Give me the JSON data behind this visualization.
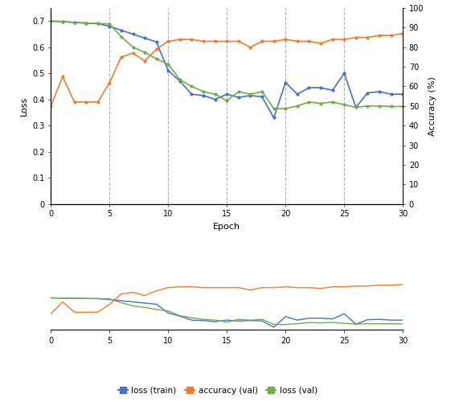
{
  "epochs": [
    0,
    1,
    2,
    3,
    4,
    5,
    6,
    7,
    8,
    9,
    10,
    11,
    12,
    13,
    14,
    15,
    16,
    17,
    18,
    19,
    20,
    21,
    22,
    23,
    24,
    25,
    26,
    27,
    28,
    29,
    30
  ],
  "loss_train": [
    0.7,
    0.698,
    0.695,
    0.692,
    0.69,
    0.68,
    0.665,
    0.65,
    0.635,
    0.62,
    0.51,
    0.47,
    0.42,
    0.415,
    0.4,
    0.42,
    0.408,
    0.415,
    0.41,
    0.33,
    0.465,
    0.42,
    0.445,
    0.445,
    0.435,
    0.5,
    0.37,
    0.425,
    0.43,
    0.42,
    0.42
  ],
  "loss_val": [
    0.7,
    0.698,
    0.695,
    0.693,
    0.691,
    0.689,
    0.64,
    0.6,
    0.58,
    0.555,
    0.535,
    0.475,
    0.45,
    0.43,
    0.42,
    0.395,
    0.43,
    0.42,
    0.43,
    0.365,
    0.365,
    0.375,
    0.39,
    0.385,
    0.39,
    0.38,
    0.37,
    0.375,
    0.375,
    0.373,
    0.373
  ],
  "acc_val": [
    50,
    65,
    52,
    52,
    52,
    62,
    75,
    77,
    73,
    79,
    83,
    84,
    84,
    83,
    83,
    83,
    83,
    80,
    83,
    83,
    84,
    83,
    83,
    82,
    84,
    84,
    85,
    85,
    86,
    86,
    87
  ],
  "color_train": "#4472C4",
  "color_val_loss": "#70AD47",
  "color_val_acc": "#ED7D31",
  "vline_positions": [
    5,
    10,
    15,
    20,
    25
  ],
  "xlabel": "Epoch",
  "ylabel_left": "Loss",
  "ylabel_right": "Accuracy (%)",
  "legend_labels": [
    "loss (train)",
    "accuracy (val)",
    "loss (val)"
  ],
  "legend_colors": [
    "#4472C4",
    "#ED7D31",
    "#70AD47"
  ],
  "mini_acc_val": [
    50,
    65,
    52,
    52,
    52,
    62,
    75,
    77,
    73,
    79,
    83,
    84,
    84,
    83,
    83,
    83,
    83,
    80,
    83,
    83,
    84,
    83,
    83,
    82,
    84,
    84,
    85,
    85,
    86,
    86,
    87
  ],
  "mini_loss_train": [
    0.7,
    0.698,
    0.695,
    0.692,
    0.69,
    0.68,
    0.665,
    0.65,
    0.635,
    0.62,
    0.51,
    0.47,
    0.42,
    0.415,
    0.4,
    0.42,
    0.408,
    0.415,
    0.41,
    0.33,
    0.465,
    0.42,
    0.445,
    0.445,
    0.435,
    0.5,
    0.37,
    0.425,
    0.43,
    0.42,
    0.42
  ],
  "mini_loss_val": [
    0.7,
    0.698,
    0.695,
    0.693,
    0.691,
    0.689,
    0.64,
    0.6,
    0.58,
    0.555,
    0.535,
    0.475,
    0.45,
    0.43,
    0.42,
    0.395,
    0.43,
    0.42,
    0.43,
    0.365,
    0.365,
    0.375,
    0.39,
    0.385,
    0.39,
    0.38,
    0.37,
    0.375,
    0.375,
    0.373,
    0.373
  ]
}
